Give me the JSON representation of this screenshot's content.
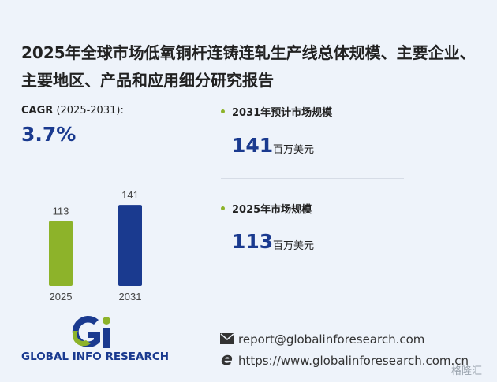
{
  "title": "2025年全球市场低氧铜杆连铸连轧生产线总体规模、主要企业、主要地区、产品和应用细分研究报告",
  "cagr": {
    "label": "CAGR",
    "period": "(2025-2031):",
    "value": "3.7%"
  },
  "chart_data": {
    "type": "bar",
    "categories": [
      "2025",
      "2031"
    ],
    "values": [
      113,
      141
    ],
    "colors": [
      "#8db32a",
      "#1a3a8f"
    ]
  },
  "stats": [
    {
      "label": "2031年预计市场规模",
      "value": 141,
      "unit": "百万美元"
    },
    {
      "label": "2025年市场规模",
      "value": 113,
      "unit": "百万美元"
    }
  ],
  "logo": {
    "text": "GLOBAL INFO RESEARCH"
  },
  "contact": {
    "email": "report@globalinforesearch.com",
    "website": "https://www.globalinforesearch.com.cn"
  },
  "watermark": "格隆汇"
}
